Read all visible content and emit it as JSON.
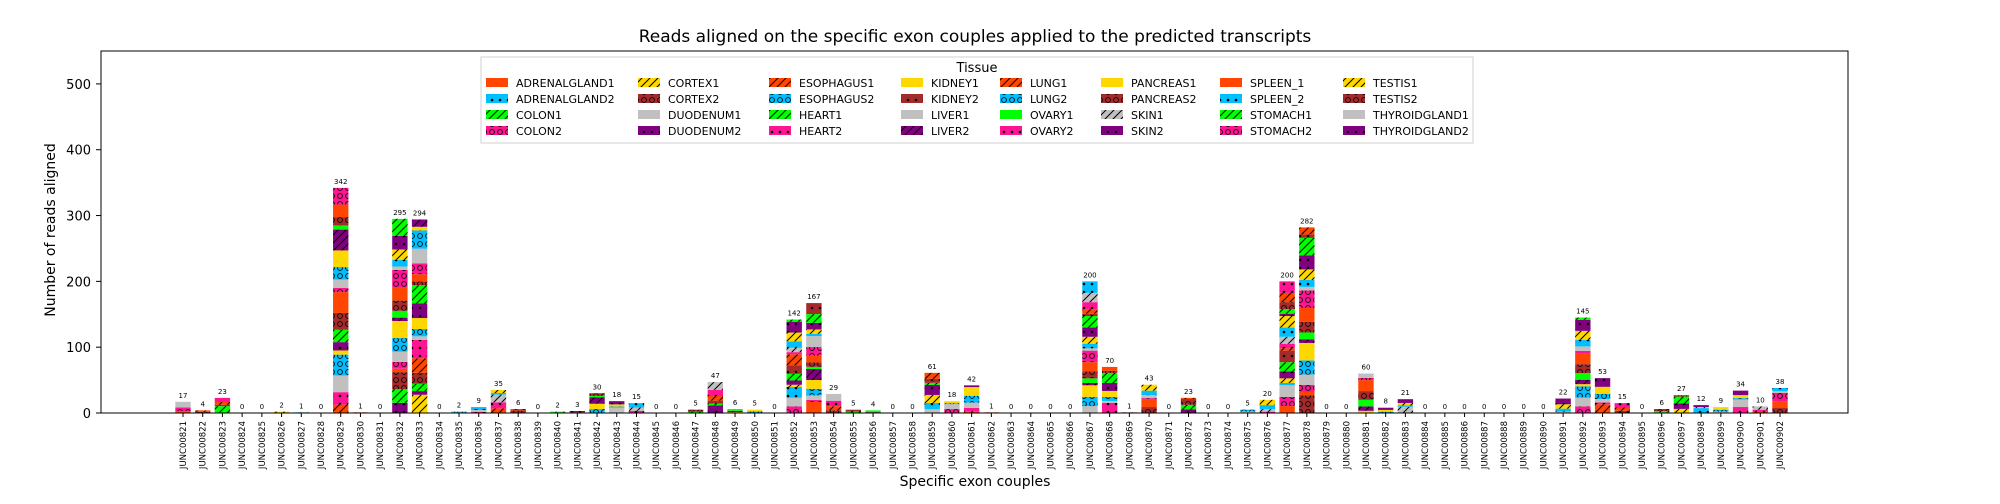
{
  "chart_data": {
    "type": "bar",
    "stacked": true,
    "title": "Reads aligned on the specific exon couples applied to the predicted transcripts",
    "xlabel": "Specific exon couples",
    "ylabel": "Number of reads aligned",
    "ylim": [
      0,
      550
    ],
    "yticks": [
      0,
      100,
      200,
      300,
      400,
      500
    ],
    "grid": false,
    "legend": {
      "title": "Tissue",
      "placement": "top-center",
      "columns": 8,
      "entries": [
        {
          "name": "ADRENALGLAND1",
          "color": "#ff4500",
          "hatch": "none"
        },
        {
          "name": "ADRENALGLAND2",
          "color": "#00bfff",
          "hatch": "dots"
        },
        {
          "name": "COLON1",
          "color": "#00ff00",
          "hatch": "slash"
        },
        {
          "name": "COLON2",
          "color": "#ff1493",
          "hatch": "circles"
        },
        {
          "name": "CORTEX1",
          "color": "#ffd700",
          "hatch": "slash"
        },
        {
          "name": "CORTEX2",
          "color": "#a52a2a",
          "hatch": "circles"
        },
        {
          "name": "DUODENUM1",
          "color": "#c0c0c0",
          "hatch": "none"
        },
        {
          "name": "DUODENUM2",
          "color": "#800080",
          "hatch": "dots"
        },
        {
          "name": "ESOPHAGUS1",
          "color": "#ff4500",
          "hatch": "slash"
        },
        {
          "name": "ESOPHAGUS2",
          "color": "#00bfff",
          "hatch": "circles"
        },
        {
          "name": "HEART1",
          "color": "#00ff00",
          "hatch": "slash"
        },
        {
          "name": "HEART2",
          "color": "#ff1493",
          "hatch": "dots"
        },
        {
          "name": "KIDNEY1",
          "color": "#ffd700",
          "hatch": "none"
        },
        {
          "name": "KIDNEY2",
          "color": "#a52a2a",
          "hatch": "dots"
        },
        {
          "name": "LIVER1",
          "color": "#c0c0c0",
          "hatch": "none"
        },
        {
          "name": "LIVER2",
          "color": "#800080",
          "hatch": "slash"
        },
        {
          "name": "LUNG1",
          "color": "#ff4500",
          "hatch": "slash"
        },
        {
          "name": "LUNG2",
          "color": "#00bfff",
          "hatch": "circles"
        },
        {
          "name": "OVARY1",
          "color": "#00ff00",
          "hatch": "none"
        },
        {
          "name": "OVARY2",
          "color": "#ff1493",
          "hatch": "dots"
        },
        {
          "name": "PANCREAS1",
          "color": "#ffd700",
          "hatch": "none"
        },
        {
          "name": "PANCREAS2",
          "color": "#a52a2a",
          "hatch": "circles"
        },
        {
          "name": "SKIN1",
          "color": "#c0c0c0",
          "hatch": "slash"
        },
        {
          "name": "SKIN2",
          "color": "#800080",
          "hatch": "dots"
        },
        {
          "name": "SPLEEN_1",
          "color": "#ff4500",
          "hatch": "none"
        },
        {
          "name": "SPLEEN_2",
          "color": "#00bfff",
          "hatch": "dots"
        },
        {
          "name": "STOMACH1",
          "color": "#00ff00",
          "hatch": "slash"
        },
        {
          "name": "STOMACH2",
          "color": "#ff1493",
          "hatch": "circles"
        },
        {
          "name": "TESTIS1",
          "color": "#ffd700",
          "hatch": "slash"
        },
        {
          "name": "TESTIS2",
          "color": "#a52a2a",
          "hatch": "circles"
        },
        {
          "name": "THYROIDGLAND1",
          "color": "#c0c0c0",
          "hatch": "none"
        },
        {
          "name": "THYROIDGLAND2",
          "color": "#800080",
          "hatch": "dots"
        }
      ]
    },
    "categories": [
      "JUNC00821",
      "JUNC00822",
      "JUNC00823",
      "JUNC00824",
      "JUNC00825",
      "JUNC00826",
      "JUNC00827",
      "JUNC00828",
      "JUNC00829",
      "JUNC00830",
      "JUNC00831",
      "JUNC00832",
      "JUNC00833",
      "JUNC00834",
      "JUNC00835",
      "JUNC00836",
      "JUNC00837",
      "JUNC00838",
      "JUNC00839",
      "JUNC00840",
      "JUNC00841",
      "JUNC00842",
      "JUNC00843",
      "JUNC00844",
      "JUNC00845",
      "JUNC00846",
      "JUNC00847",
      "JUNC00848",
      "JUNC00849",
      "JUNC00850",
      "JUNC00851",
      "JUNC00852",
      "JUNC00853",
      "JUNC00854",
      "JUNC00855",
      "JUNC00856",
      "JUNC00857",
      "JUNC00858",
      "JUNC00859",
      "JUNC00860",
      "JUNC00861",
      "JUNC00862",
      "JUNC00863",
      "JUNC00864",
      "JUNC00865",
      "JUNC00866",
      "JUNC00867",
      "JUNC00868",
      "JUNC00869",
      "JUNC00870",
      "JUNC00871",
      "JUNC00872",
      "JUNC00873",
      "JUNC00874",
      "JUNC00875",
      "JUNC00876",
      "JUNC00877",
      "JUNC00878",
      "JUNC00879",
      "JUNC00880",
      "JUNC00881",
      "JUNC00882",
      "JUNC00883",
      "JUNC00884",
      "JUNC00885",
      "JUNC00886",
      "JUNC00887",
      "JUNC00888",
      "JUNC00889",
      "JUNC00890",
      "JUNC00891",
      "JUNC00892",
      "JUNC00893",
      "JUNC00894",
      "JUNC00895",
      "JUNC00896",
      "JUNC00897",
      "JUNC00898",
      "JUNC00899",
      "JUNC00900",
      "JUNC00901",
      "JUNC00902"
    ],
    "totals": [
      17,
      4,
      23,
      0,
      0,
      2,
      1,
      0,
      342,
      1,
      0,
      295,
      294,
      0,
      2,
      9,
      35,
      6,
      0,
      2,
      3,
      30,
      18,
      15,
      0,
      0,
      5,
      47,
      6,
      5,
      0,
      142,
      167,
      29,
      5,
      4,
      0,
      0,
      61,
      18,
      42,
      1,
      0,
      0,
      0,
      0,
      200,
      70,
      1,
      43,
      0,
      23,
      0,
      0,
      5,
      20,
      200,
      282,
      0,
      0,
      60,
      8,
      21,
      0,
      0,
      0,
      0,
      0,
      0,
      0,
      22,
      145,
      53,
      15,
      0,
      6,
      27,
      12,
      9,
      34,
      10,
      38
    ]
  }
}
